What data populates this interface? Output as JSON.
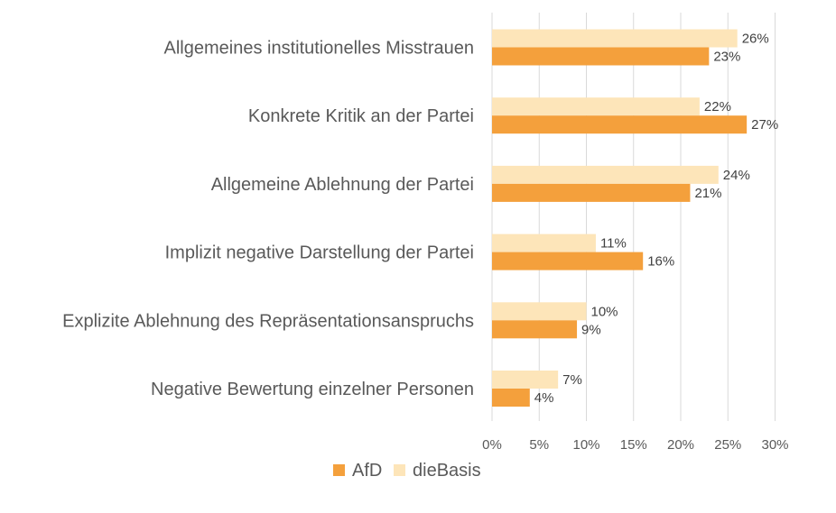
{
  "chart_data": {
    "type": "bar",
    "orientation": "horizontal",
    "categories": [
      "Allgemeines institutionelles Misstrauen",
      "Konkrete Kritik an der Partei",
      "Allgemeine Ablehnung der Partei",
      "Implizit negative Darstellung der Partei",
      "Explizite Ablehnung des Repräsentationsanspruchs",
      "Negative Bewertung einzelner Personen"
    ],
    "series": [
      {
        "name": "AfD",
        "color": "#f4a03c",
        "values": [
          23,
          27,
          21,
          16,
          9,
          4
        ],
        "labels": [
          "23%",
          "27%",
          "21%",
          "16%",
          "9%",
          "4%"
        ]
      },
      {
        "name": "dieBasis",
        "color": "#fde5b9",
        "values": [
          26,
          22,
          24,
          11,
          10,
          7
        ],
        "labels": [
          "26%",
          "22%",
          "24%",
          "11%",
          "10%",
          "7%"
        ]
      }
    ],
    "xlim": [
      0,
      30
    ],
    "ticks": [
      0,
      5,
      10,
      15,
      20,
      25,
      30
    ],
    "tick_labels": [
      "0%",
      "5%",
      "10%",
      "15%",
      "20%",
      "25%",
      "30%"
    ],
    "legend": [
      "AfD",
      "dieBasis"
    ],
    "legend_position": "bottom",
    "grid": true,
    "grid_color": "#d9d9d9",
    "label_color": "#595959"
  }
}
